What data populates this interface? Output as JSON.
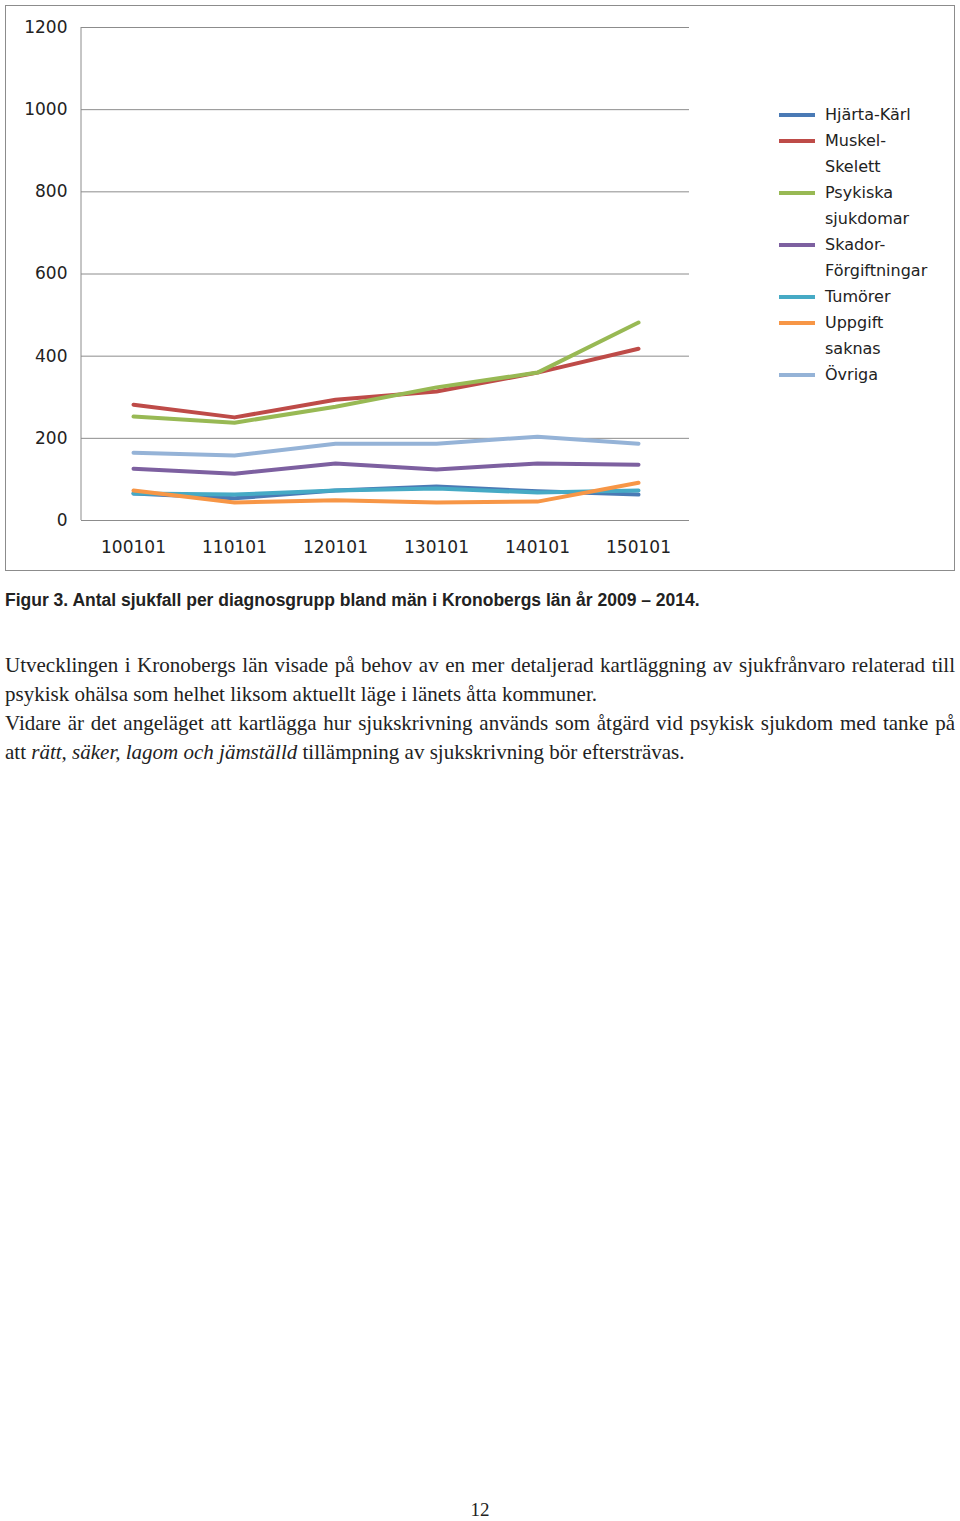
{
  "chart_data": {
    "type": "line",
    "title": "Figur 3. Antal sjukfall per diagnosgrupp bland män i Kronobergs län år 2009 – 2014.",
    "categories": [
      "100101",
      "110101",
      "120101",
      "130101",
      "140101",
      "150101"
    ],
    "ylim": [
      0,
      1200
    ],
    "yticks": [
      0,
      200,
      400,
      600,
      800,
      1000,
      1200
    ],
    "grid": true,
    "legend": "right",
    "series": [
      {
        "name": "Hjärta-Kärl",
        "color": "#4a7ab5",
        "values": [
          66,
          54,
          73,
          83,
          71,
          63
        ]
      },
      {
        "name": "Muskel-Skelett",
        "color": "#be4b48",
        "values": [
          282,
          251,
          294,
          314,
          360,
          418
        ]
      },
      {
        "name": "Psykiska sjukdomar",
        "color": "#98b954",
        "values": [
          253,
          238,
          277,
          324,
          360,
          482
        ]
      },
      {
        "name": "Skador-Förgiftningar",
        "color": "#7d60a0",
        "values": [
          126,
          114,
          139,
          124,
          139,
          136
        ]
      },
      {
        "name": "Tumörer",
        "color": "#46aac5",
        "values": [
          66,
          63,
          73,
          78,
          68,
          73
        ]
      },
      {
        "name": "Uppgift saknas",
        "color": "#f79646",
        "values": [
          73,
          44,
          49,
          44,
          46,
          92
        ]
      },
      {
        "name": "Övriga",
        "color": "#95b3d7",
        "values": [
          165,
          158,
          187,
          187,
          204,
          187
        ]
      }
    ]
  },
  "document": {
    "paragraphs": [
      [
        {
          "text": "Utvecklingen i Kronobergs län visade på behov av en mer detaljerad kartläggning av sjukfrånvaro relaterad till psykisk ohälsa som helhet liksom aktuellt läge i länets åtta kommuner."
        }
      ],
      [
        {
          "text": "Vidare är det angeläget att kartlägga hur sjukskrivning används som åtgärd vid psykisk sjukdom med tanke på att "
        },
        {
          "text": "rätt, säker, lagom och jämställd",
          "italic": true
        },
        {
          "text": " tillämpning av sjukskrivning bör eftersträvas."
        }
      ]
    ],
    "page_number": "12"
  }
}
